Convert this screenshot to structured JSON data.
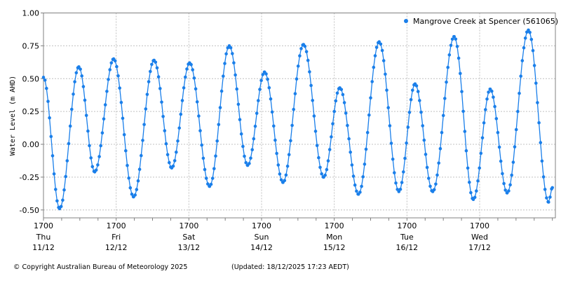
{
  "chart_data": {
    "type": "line",
    "ylabel": "Water Level (m AHD)",
    "ylim": [
      -0.56,
      1.0
    ],
    "yticks": [
      "1.00",
      "0.75",
      "0.50",
      "0.25",
      "0.00",
      "-0.25",
      "-0.50"
    ],
    "ytick_values": [
      1.0,
      0.75,
      0.5,
      0.25,
      0.0,
      -0.25,
      -0.5
    ],
    "xlim": [
      "2025-12-11T17:00",
      "2025-12-18T18:00"
    ],
    "xticks": [
      {
        "time": "1700",
        "day": "Thu",
        "date": "11/12",
        "at": "2025-12-11T17:00"
      },
      {
        "time": "1700",
        "day": "Fri",
        "date": "12/12",
        "at": "2025-12-12T17:00"
      },
      {
        "time": "1700",
        "day": "Sat",
        "date": "13/12",
        "at": "2025-12-13T17:00"
      },
      {
        "time": "1700",
        "day": "Sun",
        "date": "14/12",
        "at": "2025-12-14T17:00"
      },
      {
        "time": "1700",
        "day": "Mon",
        "date": "15/12",
        "at": "2025-12-15T17:00"
      },
      {
        "time": "1700",
        "day": "Tue",
        "date": "16/12",
        "at": "2025-12-16T17:00"
      },
      {
        "time": "1700",
        "day": "Wed",
        "date": "17/12",
        "at": "2025-12-17T17:00"
      }
    ],
    "grid": true,
    "legend_position": "top-right",
    "series": [
      {
        "name": "Mangrove Creek at Spencer (561065)",
        "color": "#1a7fea",
        "turning_points": [
          {
            "t": "2025-12-11T17:00",
            "v": 0.51
          },
          {
            "t": "2025-12-11T22:20",
            "v": -0.49
          },
          {
            "t": "2025-12-12T04:40",
            "v": 0.59
          },
          {
            "t": "2025-12-12T09:55",
            "v": -0.21
          },
          {
            "t": "2025-12-12T16:10",
            "v": 0.65
          },
          {
            "t": "2025-12-12T22:45",
            "v": -0.4
          },
          {
            "t": "2025-12-13T05:30",
            "v": 0.64
          },
          {
            "t": "2025-12-13T11:20",
            "v": -0.18
          },
          {
            "t": "2025-12-13T17:15",
            "v": 0.62
          },
          {
            "t": "2025-12-13T23:50",
            "v": -0.32
          },
          {
            "t": "2025-12-14T06:20",
            "v": 0.75
          },
          {
            "t": "2025-12-14T12:25",
            "v": -0.16
          },
          {
            "t": "2025-12-14T18:00",
            "v": 0.55
          },
          {
            "t": "2025-12-15T00:05",
            "v": -0.29
          },
          {
            "t": "2025-12-15T06:50",
            "v": 0.76
          },
          {
            "t": "2025-12-15T13:30",
            "v": -0.25
          },
          {
            "t": "2025-12-15T18:50",
            "v": 0.43
          },
          {
            "t": "2025-12-16T01:00",
            "v": -0.38
          },
          {
            "t": "2025-12-16T07:50",
            "v": 0.78
          },
          {
            "t": "2025-12-16T14:20",
            "v": -0.36
          },
          {
            "t": "2025-12-16T19:40",
            "v": 0.46
          },
          {
            "t": "2025-12-17T01:30",
            "v": -0.36
          },
          {
            "t": "2025-12-17T08:35",
            "v": 0.82
          },
          {
            "t": "2025-12-17T14:55",
            "v": -0.42
          },
          {
            "t": "2025-12-17T20:30",
            "v": 0.42
          },
          {
            "t": "2025-12-18T02:05",
            "v": -0.37
          },
          {
            "t": "2025-12-18T09:05",
            "v": 0.87
          },
          {
            "t": "2025-12-18T15:45",
            "v": -0.44
          },
          {
            "t": "2025-12-18T17:00",
            "v": -0.33
          }
        ]
      }
    ]
  },
  "footer": {
    "copyright": "© Copyright Australian Bureau of Meteorology 2025",
    "updated": "(Updated: 18/12/2025 17:23 AEDT)"
  }
}
